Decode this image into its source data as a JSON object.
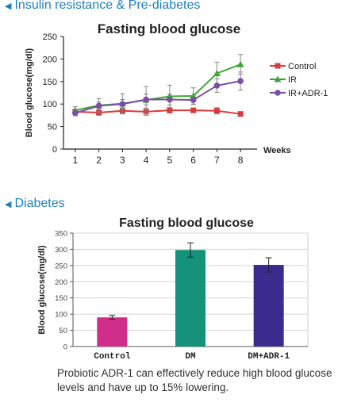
{
  "section1": {
    "title": "Insulin resistance & Pre-diabetes"
  },
  "section2": {
    "title": "Diabetes"
  },
  "caption": "Probiotic ADR-1 can effectively reduce high blood glucose levels and have up to 15% lowering.",
  "chart_data": [
    {
      "type": "line",
      "title": "Fasting blood glucose",
      "xlabel": "Weeks",
      "ylabel": "Blood glucose(mg/dl)",
      "x": [
        1,
        2,
        3,
        4,
        5,
        6,
        7,
        8
      ],
      "ylim": [
        0,
        250
      ],
      "yticks": [
        0,
        50,
        100,
        150,
        200,
        250
      ],
      "legend_position": "right",
      "series": [
        {
          "name": "Control",
          "color": "#d93a3a",
          "marker": "square",
          "values": [
            83,
            81,
            85,
            83,
            86,
            86,
            85,
            78
          ],
          "errors": [
            5,
            6,
            7,
            8,
            6,
            5,
            7,
            4
          ]
        },
        {
          "name": "IR",
          "color": "#3fa635",
          "marker": "triangle",
          "values": [
            86,
            97,
            101,
            109,
            117,
            118,
            168,
            188
          ],
          "errors": [
            8,
            15,
            22,
            30,
            25,
            18,
            25,
            22
          ]
        },
        {
          "name": "IR+ADR-1",
          "color": "#7b4ea6",
          "marker": "circle",
          "values": [
            80,
            96,
            100,
            110,
            110,
            109,
            141,
            151
          ],
          "errors": [
            6,
            8,
            10,
            12,
            12,
            10,
            15,
            20
          ]
        }
      ]
    },
    {
      "type": "bar",
      "title": "Fasting blood glucose",
      "xlabel": "",
      "ylabel": "Blood glucose(mg/dl)",
      "categories": [
        "Control",
        "DM",
        "DM+ADR-1"
      ],
      "values": [
        90,
        298,
        252
      ],
      "errors": [
        6,
        22,
        22
      ],
      "colors": [
        "#d12e8c",
        "#16927b",
        "#3b2b8f"
      ],
      "ylim": [
        0,
        350
      ],
      "yticks": [
        0,
        50,
        100,
        150,
        200,
        250,
        300,
        350
      ],
      "grid": true
    }
  ]
}
